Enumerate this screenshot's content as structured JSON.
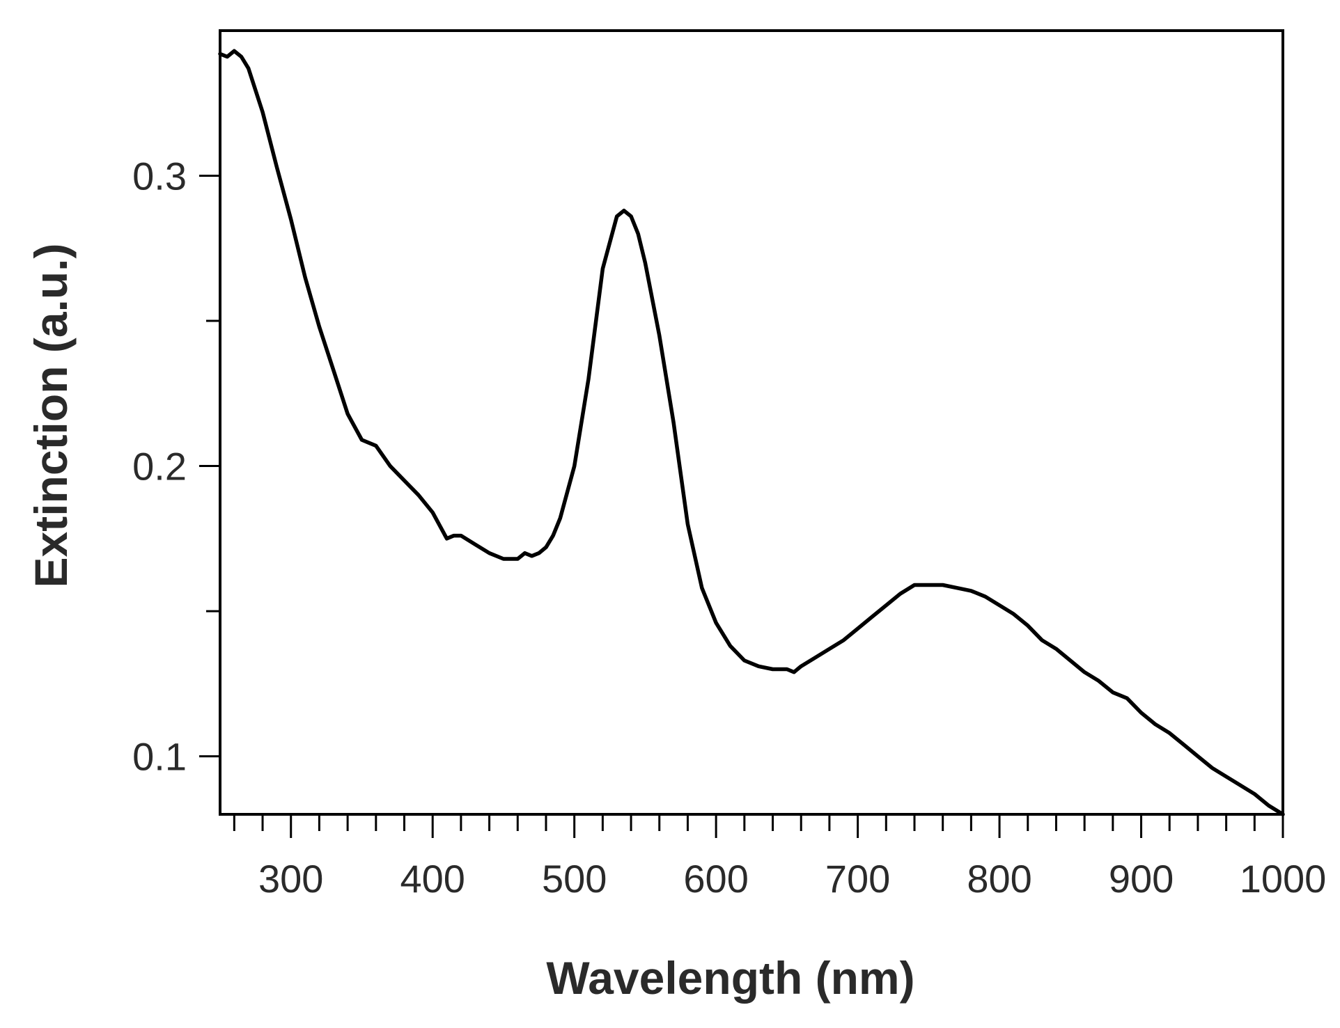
{
  "chart_data": {
    "type": "line",
    "title": "",
    "xlabel": "Wavelength (nm)",
    "ylabel": "Extinction (a.u.)",
    "xlim": [
      250,
      1000
    ],
    "ylim": [
      0.08,
      0.35
    ],
    "x_ticks": [
      300,
      400,
      500,
      600,
      700,
      800,
      900,
      1000
    ],
    "x_tick_labels": [
      "300",
      "400",
      "500",
      "600",
      "700",
      "800",
      "900",
      "1000"
    ],
    "y_ticks": [
      0.1,
      0.2,
      0.3
    ],
    "y_tick_labels": [
      "0.1",
      "0.2",
      "0.3"
    ],
    "grid": false,
    "line_color": "#000000",
    "series": [
      {
        "x": [
          250,
          255,
          260,
          265,
          270,
          280,
          290,
          300,
          310,
          320,
          330,
          340,
          350,
          360,
          370,
          380,
          390,
          400,
          410,
          415,
          420,
          430,
          440,
          450,
          460,
          465,
          470,
          475,
          480,
          485,
          490,
          500,
          510,
          520,
          530,
          535,
          540,
          545,
          550,
          560,
          570,
          580,
          590,
          600,
          610,
          620,
          630,
          640,
          650,
          655,
          660,
          670,
          680,
          690,
          700,
          710,
          720,
          730,
          740,
          750,
          760,
          770,
          780,
          790,
          800,
          810,
          820,
          830,
          840,
          850,
          860,
          870,
          880,
          890,
          900,
          910,
          920,
          930,
          940,
          950,
          960,
          970,
          980,
          990,
          1000
        ],
        "y": [
          0.342,
          0.341,
          0.343,
          0.341,
          0.337,
          0.322,
          0.303,
          0.285,
          0.265,
          0.248,
          0.233,
          0.218,
          0.209,
          0.207,
          0.2,
          0.195,
          0.19,
          0.184,
          0.175,
          0.176,
          0.176,
          0.173,
          0.17,
          0.168,
          0.168,
          0.17,
          0.169,
          0.17,
          0.172,
          0.176,
          0.182,
          0.2,
          0.23,
          0.268,
          0.286,
          0.288,
          0.286,
          0.28,
          0.27,
          0.245,
          0.215,
          0.18,
          0.158,
          0.146,
          0.138,
          0.133,
          0.131,
          0.13,
          0.13,
          0.129,
          0.131,
          0.134,
          0.137,
          0.14,
          0.144,
          0.148,
          0.152,
          0.156,
          0.159,
          0.159,
          0.159,
          0.158,
          0.157,
          0.155,
          0.152,
          0.149,
          0.145,
          0.14,
          0.137,
          0.133,
          0.129,
          0.126,
          0.122,
          0.12,
          0.115,
          0.111,
          0.108,
          0.104,
          0.1,
          0.096,
          0.093,
          0.09,
          0.087,
          0.083,
          0.08
        ]
      }
    ]
  }
}
